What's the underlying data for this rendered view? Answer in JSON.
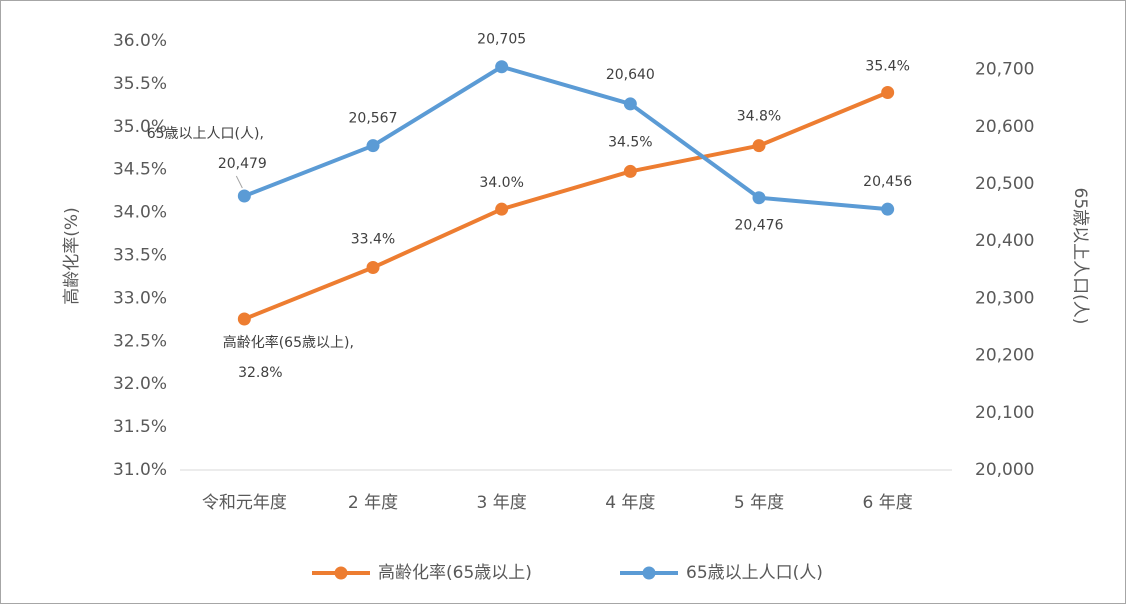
{
  "chart_data": {
    "type": "line",
    "categories": [
      "令和元年度",
      "2 年度",
      "3 年度",
      "4 年度",
      "5 年度",
      "6 年度"
    ],
    "series": [
      {
        "name": "高齢化率(65歳以上)",
        "name_label": "高齢化率(65歳以上),",
        "color": "#ed7d31",
        "values": [
          32.76,
          33.36,
          34.04,
          34.48,
          34.78,
          35.4
        ],
        "value_labels": [
          "32.8%",
          "33.4%",
          "34.0%",
          "34.5%",
          "34.8%",
          "35.4%"
        ]
      },
      {
        "name": "65歳以上人口(人)",
        "name_label": "65歳以上人口(人),",
        "color": "#5b9bd5",
        "axis": "y2",
        "values": [
          20479,
          20567,
          20705,
          20640,
          20476,
          20456
        ],
        "value_labels": [
          "20,479",
          "20,567",
          "20,705",
          "20,640",
          "20,476",
          "20,456"
        ]
      }
    ],
    "ylabel": "高齢化率(%)",
    "y2label": "65歳以上人口(人)",
    "ylim": [
      31,
      36
    ],
    "yticks": [
      {
        "value": 31,
        "label": "31.0%"
      },
      {
        "value": 31.5,
        "label": "31.5%"
      },
      {
        "value": 32,
        "label": "32.0%"
      },
      {
        "value": 32.5,
        "label": "32.5%"
      },
      {
        "value": 33,
        "label": "33.0%"
      },
      {
        "value": 33.5,
        "label": "33.5%"
      },
      {
        "value": 34,
        "label": "34.0%"
      },
      {
        "value": 34.5,
        "label": "34.5%"
      },
      {
        "value": 35,
        "label": "35.0%"
      },
      {
        "value": 35.5,
        "label": "35.5%"
      },
      {
        "value": 36,
        "label": "36.0%"
      }
    ],
    "y2lim": [
      20000,
      20750
    ],
    "y2ticks": [
      {
        "value": 20000,
        "label": "20,000"
      },
      {
        "value": 20100,
        "label": "20,100"
      },
      {
        "value": 20200,
        "label": "20,200"
      },
      {
        "value": 20300,
        "label": "20,300"
      },
      {
        "value": 20400,
        "label": "20,400"
      },
      {
        "value": 20500,
        "label": "20,500"
      },
      {
        "value": 20600,
        "label": "20,600"
      },
      {
        "value": 20700,
        "label": "20,700"
      }
    ],
    "grid": false,
    "legend": "bottom"
  }
}
